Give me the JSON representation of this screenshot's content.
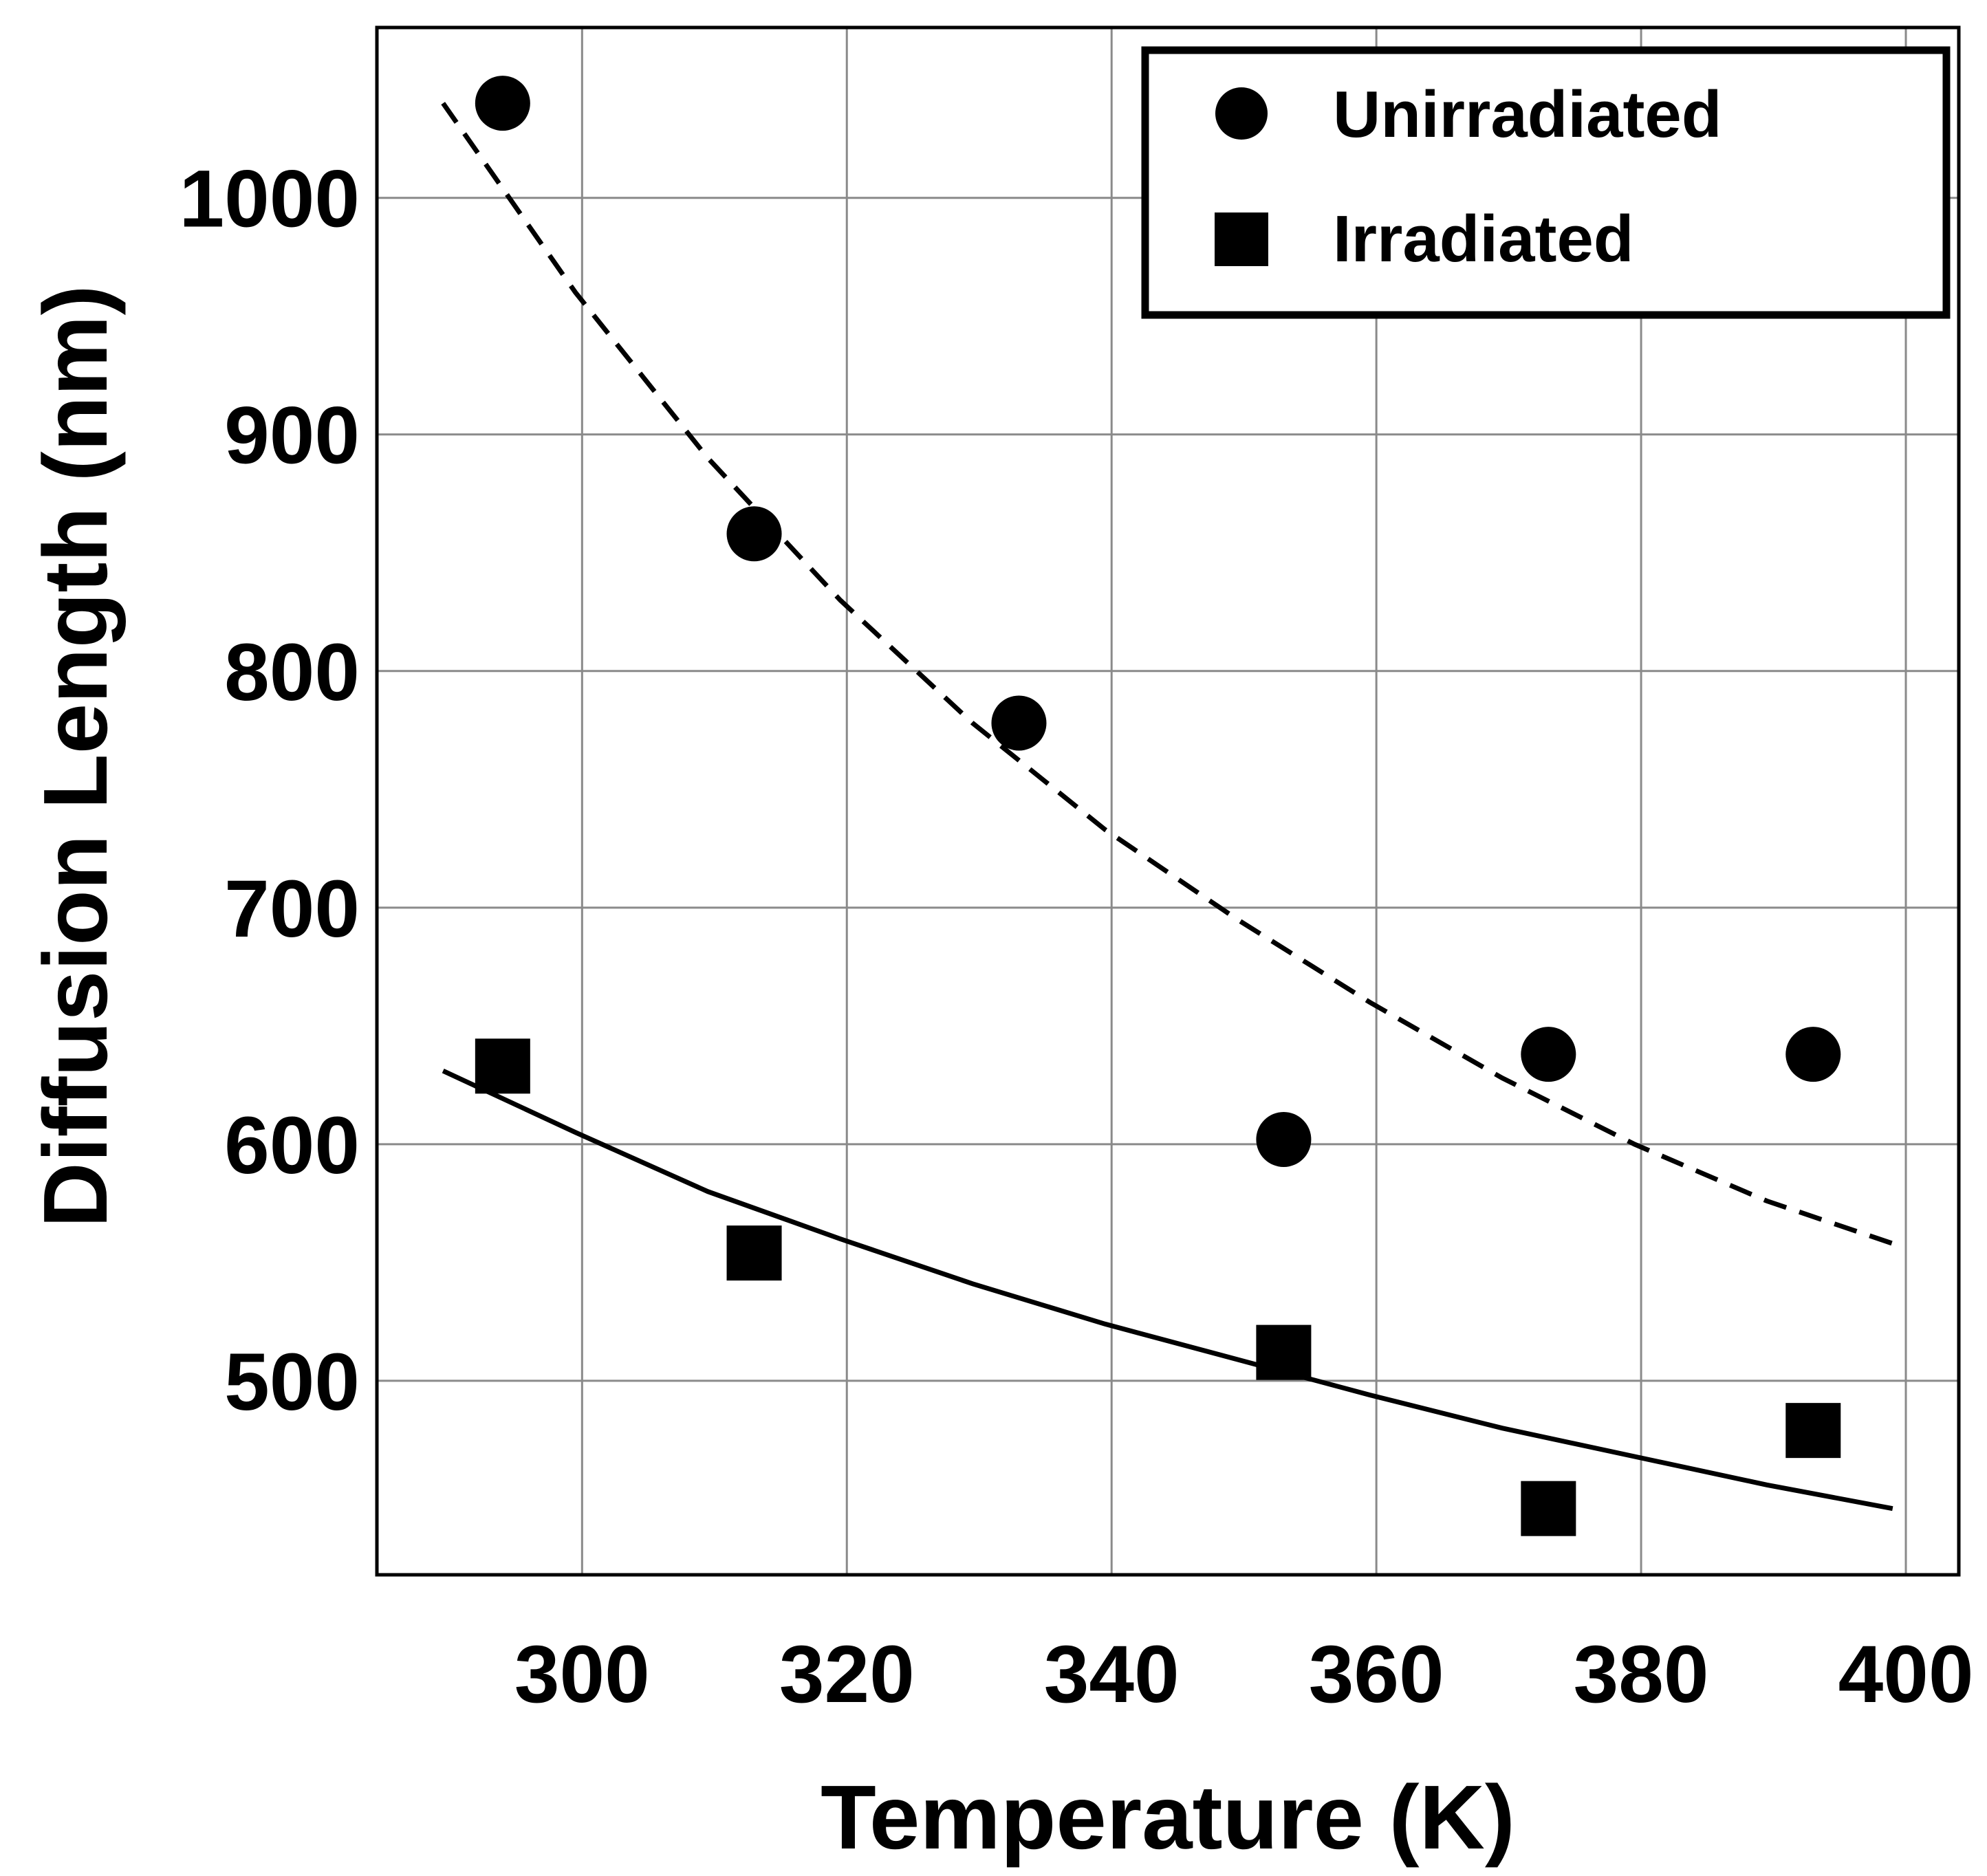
{
  "chart_data": {
    "type": "scatter",
    "title": "",
    "xlabel": "Temperature (K)",
    "ylabel": "Diffusion Length (nm)",
    "xlim": [
      284.5,
      404
    ],
    "ylim": [
      418,
      1072
    ],
    "xticks": [
      300,
      320,
      340,
      360,
      380,
      400
    ],
    "yticks": [
      500,
      600,
      700,
      800,
      900,
      1000
    ],
    "grid": true,
    "legend_position": "top-right",
    "series": [
      {
        "name": "Unirradiated",
        "marker": "circle",
        "color": "#000000",
        "x": [
          294,
          313,
          333,
          353,
          373,
          393
        ],
        "y": [
          1040,
          858,
          778,
          602,
          638,
          638
        ],
        "fit": {
          "style": "dashed",
          "x": [
            289.5,
            299.5,
            309.5,
            319.5,
            329.5,
            339.5,
            349.5,
            359.5,
            369.5,
            379.5,
            389.5,
            399
          ],
          "y": [
            1040,
            960,
            890,
            830,
            778,
            733,
            695,
            660,
            628,
            600,
            576,
            558
          ]
        }
      },
      {
        "name": "Irradiated",
        "marker": "square",
        "color": "#000000",
        "x": [
          294,
          313,
          353,
          373,
          393
        ],
        "y": [
          633,
          554,
          512,
          446,
          479
        ],
        "fit": {
          "style": "solid",
          "x": [
            289.5,
            299.5,
            309.5,
            319.5,
            329.5,
            339.5,
            349.5,
            359.5,
            369.5,
            379.5,
            389.5,
            399
          ],
          "y": [
            631,
            605,
            580,
            560,
            541,
            524,
            509,
            494,
            480,
            468,
            456,
            446
          ]
        }
      }
    ]
  }
}
